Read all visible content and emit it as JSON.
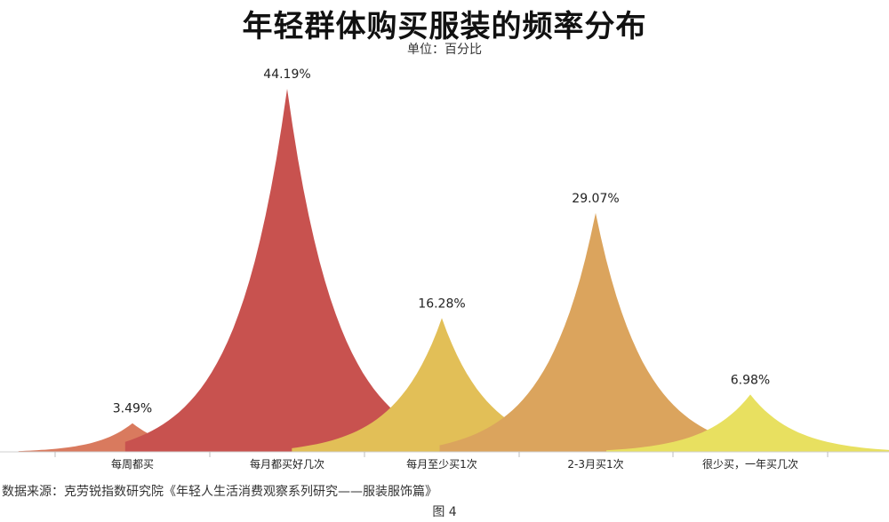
{
  "chart_data": {
    "type": "area",
    "title": "年轻群体购买服装的频率分布",
    "subtitle": "单位：百分比",
    "categories": [
      "每周都买",
      "每月都买好几次",
      "每月至少买1次",
      "2-3月买1次",
      "很少买，一年买几次"
    ],
    "values": [
      3.49,
      44.19,
      16.28,
      29.07,
      6.98
    ],
    "value_labels": [
      "3.49%",
      "44.19%",
      "16.28%",
      "29.07%",
      "6.98%"
    ],
    "unit": "%",
    "ylim": [
      0,
      44.19
    ],
    "colors": [
      "#d97a5e",
      "#c8524f",
      "#e2bf57",
      "#dba45d",
      "#e8e060"
    ],
    "grid": false,
    "legend": "none"
  },
  "source": "数据来源：克劳锐指数研究院《年轻人生活消费观察系列研究——服装服饰篇》",
  "caption": "图 4"
}
